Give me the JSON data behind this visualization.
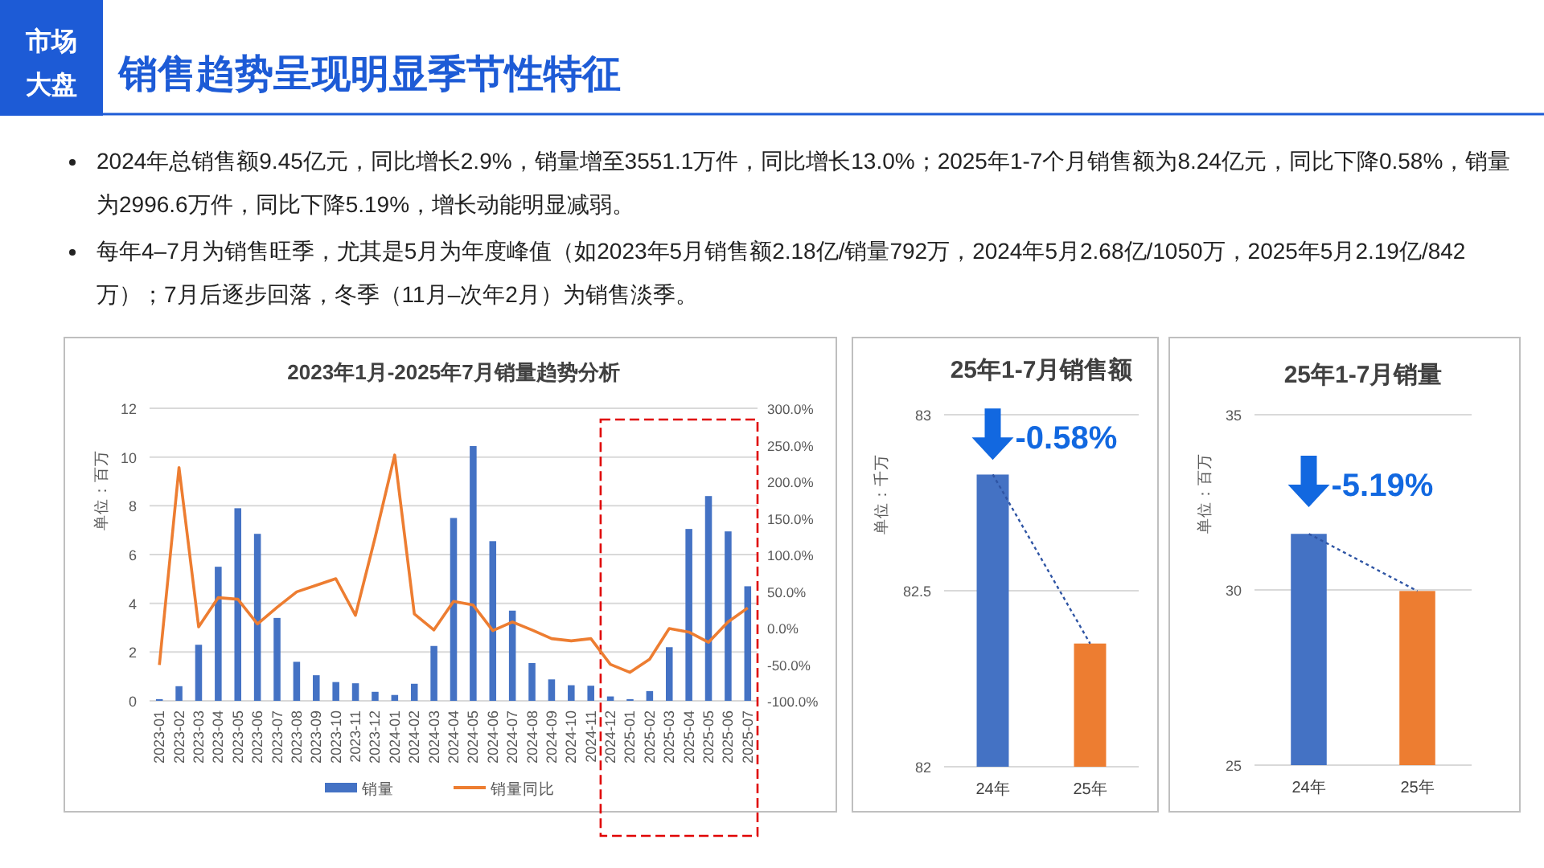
{
  "chart_data": [
    {
      "type": "other",
      "title": "销售趋势呈现明显季节性特征",
      "annotations": [
        "市场大盘",
        "2024年总销售额9.45亿元，同比增长2.9%，销量增至3551.1万件，同比增长13.0%；2025年1-7个月销售额为8.24亿元，同比下降0.58%，销量为2996.6万件，同比下降5.19%，增长动能明显减弱。",
        "每年4–7月为销售旺季，尤其是5月为年度峰值（如2023年5月销售额2.18亿/销量792万，2024年5月2.68亿/1050万，2025年5月2.19亿/842万）；7月后逐步回落，冬季（11月–次年2月）为销售淡季。"
      ]
    },
    {
      "type": "bar",
      "title": "2023年1月-2025年7月销量趋势分析",
      "ylabel": "单位：百万",
      "categories": [
        "2023-01",
        "2023-02",
        "2023-03",
        "2023-04",
        "2023-05",
        "2023-06",
        "2023-07",
        "2023-08",
        "2023-09",
        "2023-10",
        "2023-11",
        "2023-12",
        "2024-01",
        "2024-02",
        "2024-03",
        "2024-04",
        "2024-05",
        "2024-06",
        "2024-07",
        "2024-08",
        "2024-09",
        "2024-10",
        "2024-11",
        "2024-12",
        "2025-01",
        "2025-02",
        "2025-03",
        "2025-04",
        "2025-05",
        "2025-06",
        "2025-07"
      ],
      "series": [
        {
          "name": "销量",
          "type": "bar",
          "color": "#4472c4",
          "values": [
            0.07,
            0.6,
            2.3,
            5.5,
            7.9,
            6.85,
            3.4,
            1.6,
            1.05,
            0.77,
            0.72,
            0.37,
            0.24,
            0.7,
            2.25,
            7.5,
            10.45,
            6.55,
            3.7,
            1.55,
            0.88,
            0.64,
            0.62,
            0.18,
            0.07,
            0.4,
            2.2,
            7.05,
            8.4,
            6.95,
            4.7
          ]
        },
        {
          "name": "销量同比",
          "type": "line",
          "axis": "y2",
          "color": "#ed7d31",
          "values": [
            -51,
            219,
            1,
            41,
            39,
            5,
            28,
            49,
            58,
            67,
            17,
            123,
            236,
            19,
            -3,
            36,
            31,
            -4,
            8,
            -3,
            -15,
            -18,
            -15,
            -50,
            -61,
            -43,
            -1,
            -6,
            -20,
            8,
            27
          ]
        }
      ],
      "ylim": [
        0,
        12
      ],
      "yticks": [
        0,
        2,
        4,
        6,
        8,
        10,
        12
      ],
      "y2lim": [
        -100,
        300
      ],
      "y2ticks": [
        {
          "value": -100,
          "label": "-100.0%"
        },
        {
          "value": -50,
          "label": "-50.0%"
        },
        {
          "value": 0,
          "label": "0.0%"
        },
        {
          "value": 50,
          "label": "50.0%"
        },
        {
          "value": 100,
          "label": "100.0%"
        },
        {
          "value": 150,
          "label": "150.0%"
        },
        {
          "value": 200,
          "label": "200.0%"
        },
        {
          "value": 250,
          "label": "250.0%"
        },
        {
          "value": 300,
          "label": "300.0%"
        }
      ],
      "grid": "y",
      "legend": "bottom"
    },
    {
      "type": "bar",
      "title": "25年1-7月销售额",
      "ylabel": "单位：千万",
      "categories": [
        "24年",
        "25年"
      ],
      "series": [
        {
          "type": "bar",
          "colors": [
            "#4472c4",
            "#ed7d31"
          ],
          "values": [
            82.83,
            82.35
          ]
        },
        {
          "type": "line",
          "color": "#2f55a4",
          "line_style": "dotted",
          "values": [
            82.83,
            82.35
          ]
        }
      ],
      "ylim": [
        82,
        83
      ],
      "yticks": [
        82,
        82.5,
        83
      ],
      "grid": "y",
      "annotations": [
        {
          "text": "-0.58%",
          "x": "24年",
          "y": 82.94
        }
      ]
    },
    {
      "type": "bar",
      "title": "25年1-7月销量",
      "ylabel": "单位：百万",
      "categories": [
        "24年",
        "25年"
      ],
      "series": [
        {
          "type": "bar",
          "colors": [
            "#4472c4",
            "#ed7d31"
          ],
          "values": [
            31.6,
            29.97
          ]
        },
        {
          "type": "line",
          "color": "#2f55a4",
          "line_style": "dotted",
          "values": [
            31.6,
            29.97
          ]
        }
      ],
      "ylim": [
        25,
        35
      ],
      "yticks": [
        25,
        30,
        35
      ],
      "grid": "y",
      "annotations": [
        {
          "text": "-5.19%",
          "x": "24年",
          "y": 33.05
        }
      ]
    }
  ]
}
